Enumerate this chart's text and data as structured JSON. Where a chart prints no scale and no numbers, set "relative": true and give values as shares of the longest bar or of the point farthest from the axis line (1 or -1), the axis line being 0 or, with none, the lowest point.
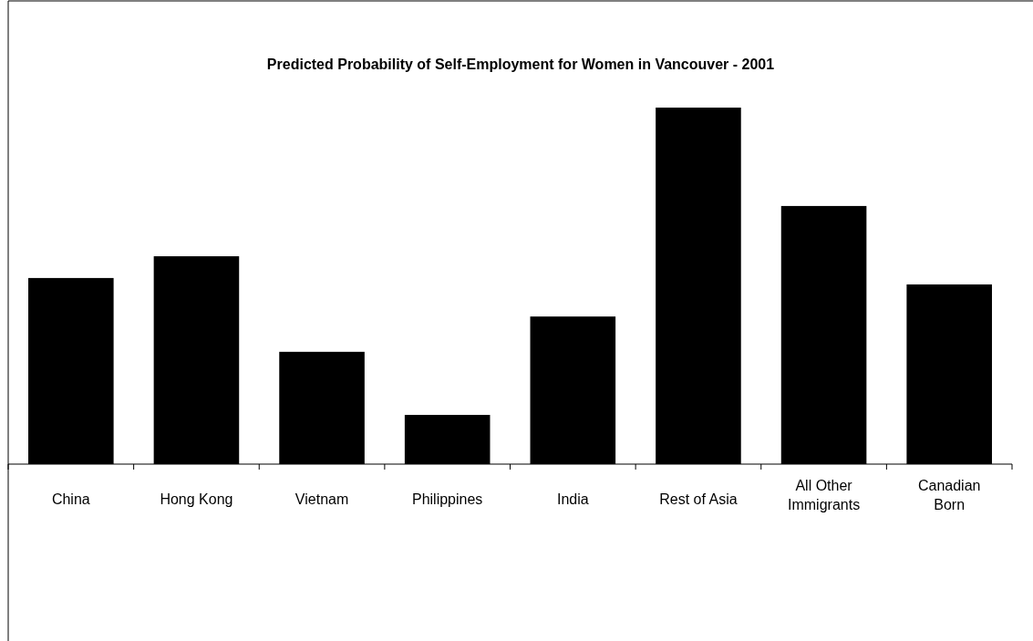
{
  "chart_data": {
    "type": "bar",
    "title": "Predicted Probability of Self-Employment for Women in Vancouver - 2001",
    "categories": [
      "China",
      "Hong Kong",
      "Vietnam",
      "Philippines",
      "India",
      "Rest of Asia",
      "All Other Immigrants",
      "Canadian Born"
    ],
    "values": [
      0.522,
      0.583,
      0.315,
      0.138,
      0.414,
      1,
      0.724,
      0.504
    ],
    "color": "#000000",
    "relative": true
  }
}
